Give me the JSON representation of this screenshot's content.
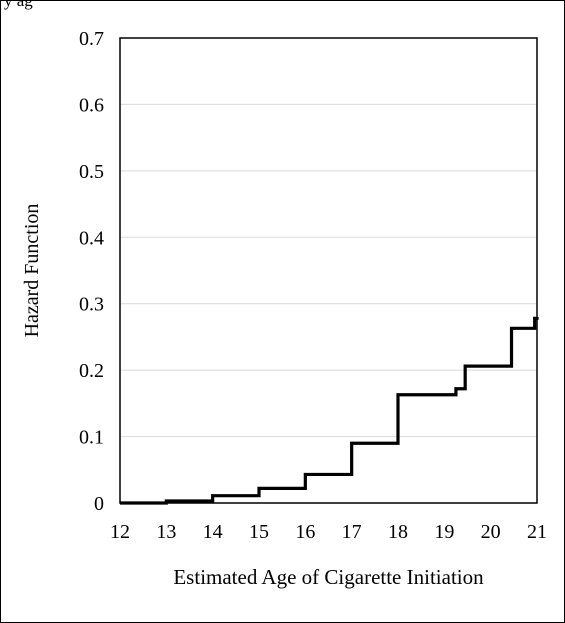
{
  "caption_fragment": "y ag",
  "chart_data": {
    "type": "line",
    "step": true,
    "title": "",
    "xlabel": "Estimated Age of Cigarette Initiation",
    "ylabel": "Hazard Function",
    "xlim": [
      12,
      21
    ],
    "ylim": [
      0,
      0.7
    ],
    "xticks": [
      "12",
      "13",
      "14",
      "15",
      "16",
      "17",
      "18",
      "19",
      "20",
      "21"
    ],
    "yticks": [
      "0",
      "0.1",
      "0.2",
      "0.3",
      "0.4",
      "0.5",
      "0.6",
      "0.7"
    ],
    "grid": "horizontal",
    "legend": "none",
    "line_color": "#000000",
    "series": [
      {
        "x": [
          12.0,
          13.0,
          14.0,
          15.0,
          16.0,
          17.0,
          18.0,
          19.25,
          19.45,
          20.45,
          20.95,
          21.0
        ],
        "y": [
          0.0,
          0.003,
          0.011,
          0.022,
          0.043,
          0.09,
          0.163,
          0.172,
          0.206,
          0.263,
          0.278,
          0.28
        ]
      }
    ]
  }
}
